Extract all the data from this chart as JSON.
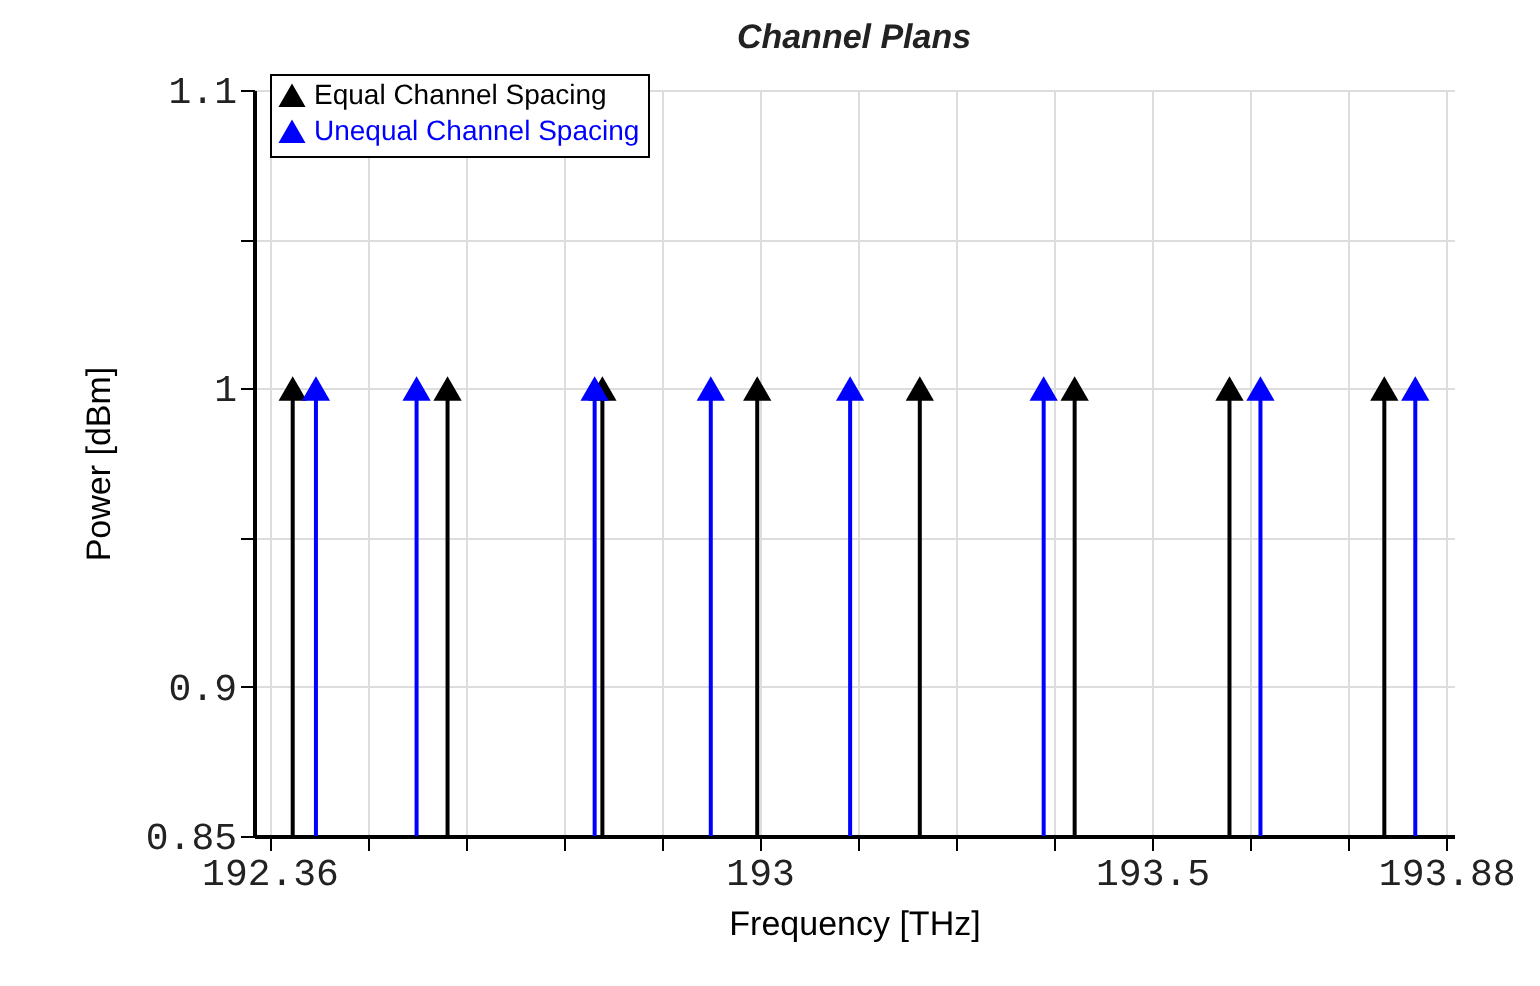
{
  "chart_data": {
    "type": "lollipop",
    "title": "Channel Plans",
    "xlabel": "Frequency [THz]",
    "ylabel": "Power [dBm]",
    "series": [
      {
        "name": "Equal Channel Spacing",
        "color": "#000000",
        "x": [
          192.39,
          192.59,
          192.79,
          192.99,
          193.2,
          193.4,
          193.6,
          193.8
        ],
        "values": [
          1,
          1,
          1,
          1,
          1,
          1,
          1,
          1
        ]
      },
      {
        "name": "Unequal Channel Spacing",
        "color": "#0000ff",
        "x": [
          192.42,
          192.55,
          192.78,
          192.93,
          193.11,
          193.36,
          193.64,
          193.84
        ],
        "values": [
          1,
          1,
          1,
          1,
          1,
          1,
          1,
          1
        ]
      }
    ],
    "xlim": [
      192.34,
      193.89
    ],
    "xticks": [
      192.36,
      {
        "value": 192.487,
        "label": null
      },
      {
        "value": 192.613,
        "label": null
      },
      {
        "value": 192.74,
        "label": null
      },
      {
        "value": 192.867,
        "label": null
      },
      {
        "value": 192.993,
        "label": "193"
      },
      {
        "value": 193.12,
        "label": null
      },
      {
        "value": 193.247,
        "label": null
      },
      {
        "value": 193.373,
        "label": null
      },
      193.5,
      {
        "value": 193.627,
        "label": null
      },
      {
        "value": 193.753,
        "label": null
      },
      193.88
    ],
    "ylim": [
      0.85,
      1.1
    ],
    "yticks": [
      0.85,
      0.9,
      {
        "value": 0.95,
        "label": null
      },
      1,
      {
        "value": 1.05,
        "label": null
      },
      1.1
    ],
    "grid": true,
    "legend": "top left",
    "marker": "triangle"
  }
}
